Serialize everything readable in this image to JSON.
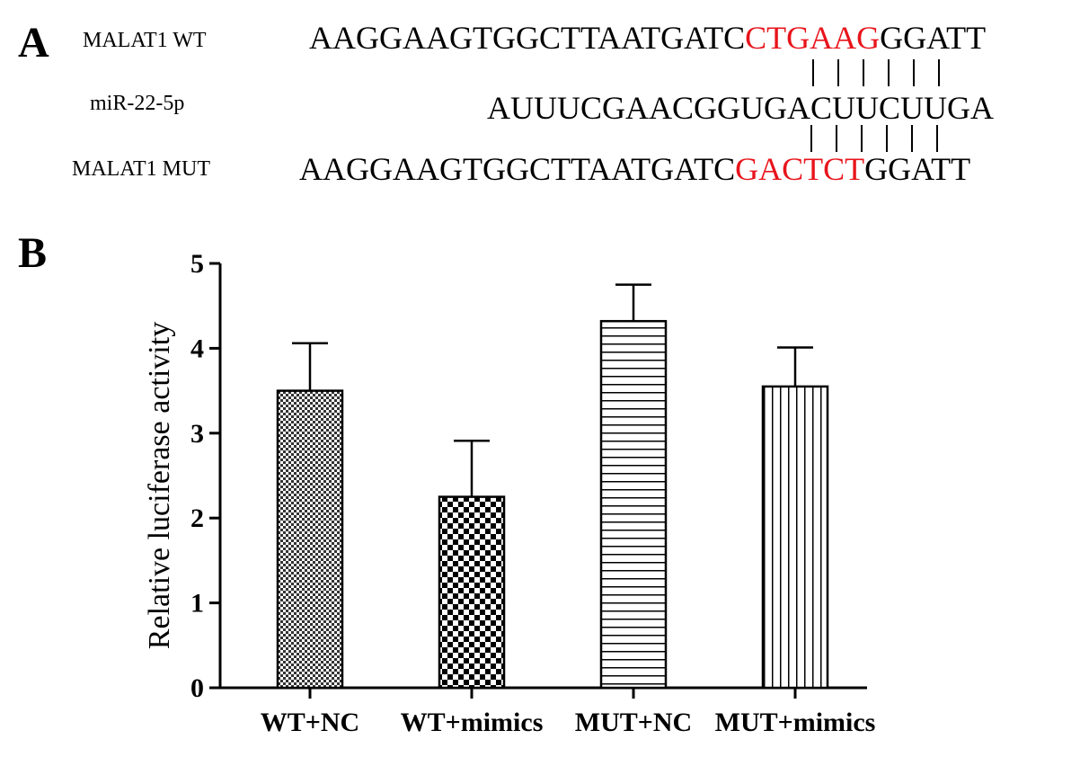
{
  "panel_a": {
    "letter": "A",
    "rows": [
      {
        "label": "MALAT1 WT",
        "prefix": "AAGGAAGTGGCTTAATGATC",
        "highlight": "CTGAAG",
        "suffix": "GGATT"
      },
      {
        "label": "miR-22-5p",
        "prefix": "AUUUCGAACGGUGACUUCUUGA",
        "highlight": "",
        "suffix": ""
      },
      {
        "label": "MALAT1 MUT",
        "prefix": "AAGGAAGTGGCTTAATGATC",
        "highlight": "GACTCT",
        "suffix": "GGATT"
      }
    ],
    "highlight_color": "#e8141b"
  },
  "panel_b": {
    "letter": "B"
  },
  "chart_data": {
    "type": "bar",
    "categories": [
      "WT+NC",
      "WT+mimics",
      "MUT+NC",
      "MUT+mimics"
    ],
    "values": [
      3.5,
      2.25,
      4.32,
      3.55
    ],
    "error_upper": [
      4.06,
      2.91,
      4.75,
      4.01
    ],
    "patterns": [
      "fine-checker",
      "coarse-checker",
      "horizontal-stripes",
      "vertical-stripes"
    ],
    "ylabel": "Relative luciferase activity",
    "xlabel": "",
    "ylim": [
      0,
      5
    ],
    "yticks": [
      "0",
      "1",
      "2",
      "3",
      "4",
      "5"
    ],
    "grid": false,
    "legend": "none"
  }
}
